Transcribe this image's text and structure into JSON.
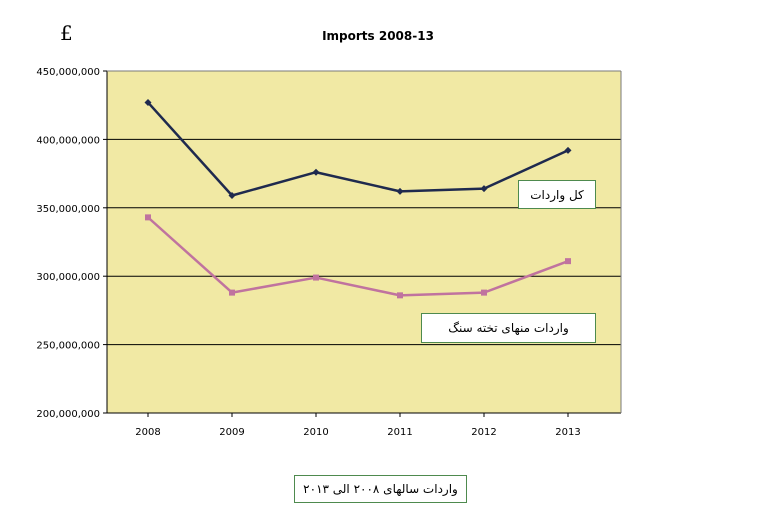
{
  "currency_symbol": "£",
  "colors": {
    "plot_background": "#f1e9a4",
    "gridline": "#000000",
    "total_series": "#1f2a4e",
    "stone_series": "#c0739f",
    "box_border": "#4e8a4e"
  },
  "chart_data": {
    "type": "line",
    "title": "Imports 2008-13",
    "x": [
      "2008",
      "2009",
      "2010",
      "2011",
      "2012",
      "2013"
    ],
    "ylim": [
      200000000,
      450000000
    ],
    "yticks": [
      "200,000,000",
      "250,000,000",
      "300,000,000",
      "350,000,000",
      "400,000,000",
      "450,000,000"
    ],
    "grid": true,
    "series": [
      {
        "name": "کل واردات",
        "marker": "diamond",
        "values": [
          427000000,
          359000000,
          376000000,
          362000000,
          364000000,
          392000000
        ]
      },
      {
        "name": "واردات منهای تخته سنگ",
        "marker": "square",
        "values": [
          343000000,
          288000000,
          299000000,
          286000000,
          288000000,
          311000000
        ]
      }
    ]
  },
  "caption": "واردات سالهای ۲۰۰۸ الی ۲۰۱۳"
}
